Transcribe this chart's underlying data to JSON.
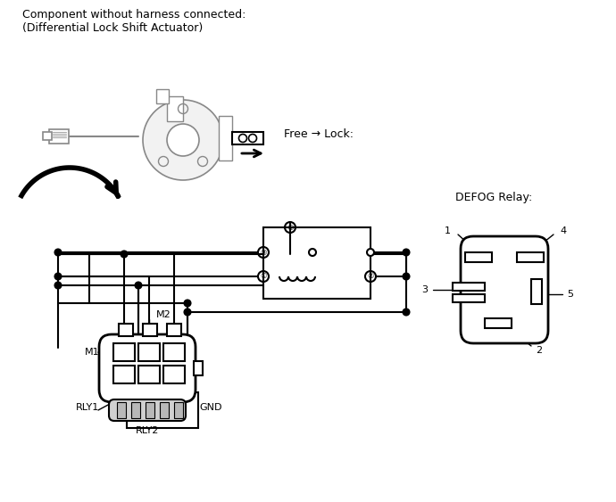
{
  "title_text": "Component without harness connected:\n(Differential Lock Shift Actuator)",
  "free_lock_label": "Free → Lock:",
  "defog_relay_label": "DEFOG Relay:",
  "bg_color": "#ffffff",
  "line_color": "#000000",
  "gray_color": "#888888",
  "font_size_main": 9,
  "font_size_small": 8
}
